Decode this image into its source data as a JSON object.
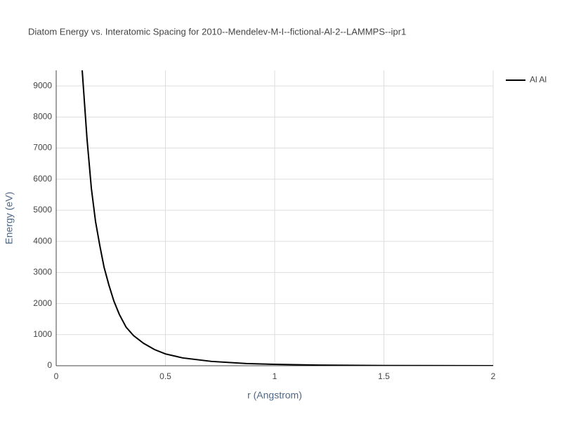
{
  "chart_data": {
    "type": "line",
    "title": "Diatom Energy vs. Interatomic Spacing for 2010--Mendelev-M-I--fictional-Al-2--LAMMPS--ipr1",
    "x_label": "r (Angstrom)",
    "y_label": "Energy (eV)",
    "x": [
      0.119,
      0.141,
      0.161,
      0.18,
      0.2,
      0.219,
      0.241,
      0.264,
      0.289,
      0.32,
      0.354,
      0.4,
      0.45,
      0.5,
      0.58,
      0.71,
      0.87,
      1.0,
      1.2,
      1.5,
      2.0
    ],
    "series": [
      {
        "name": "Al Al",
        "color": "#000000",
        "values": [
          9500,
          7300,
          5700,
          4640,
          3850,
          3170,
          2600,
          2080,
          1650,
          1240,
          970,
          720,
          520,
          380,
          250,
          140,
          70,
          45,
          20,
          5,
          1
        ]
      }
    ],
    "xlim": [
      0,
      2
    ],
    "xticks": [
      0,
      0.5,
      1,
      1.5,
      2
    ],
    "ylim": [
      0,
      9500
    ],
    "yticks": [
      0,
      1000,
      2000,
      3000,
      4000,
      5000,
      6000,
      7000,
      8000,
      9000
    ],
    "grid": true,
    "legend": "right"
  }
}
